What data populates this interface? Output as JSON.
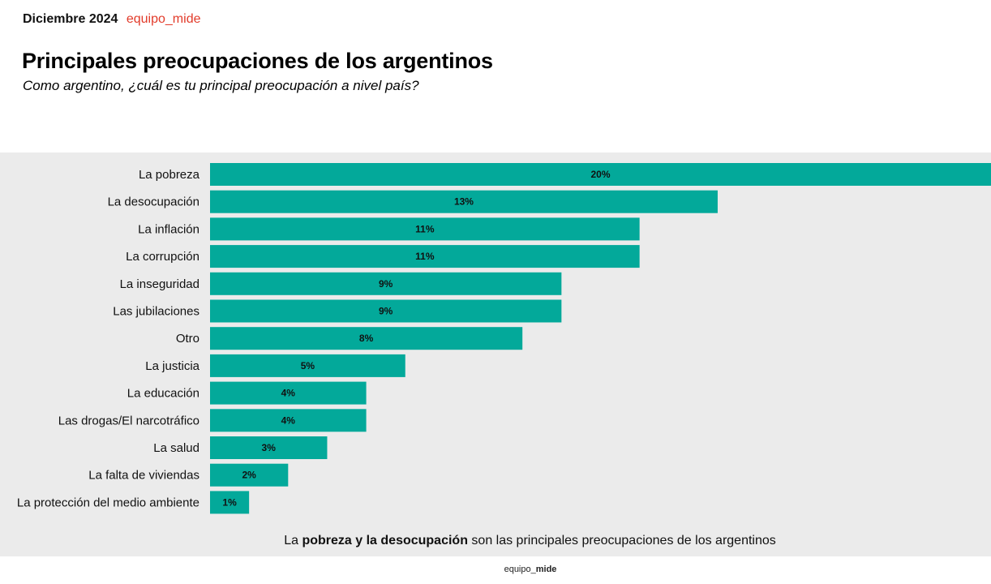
{
  "header": {
    "date": "Diciembre 2024",
    "brand": "equipo_mide"
  },
  "colors": {
    "bar": "#03a99a",
    "panel": "#ebebeb",
    "brand": "#e23b2a"
  },
  "takeaway": {
    "prefix": "La ",
    "bold": "pobreza y la desocupación",
    "suffix": " son las principales preocupaciones de los argentinos"
  },
  "footer": {
    "brand_prefix": "equipo_",
    "brand_bold": "mide"
  },
  "chart_data": {
    "type": "bar",
    "orientation": "horizontal",
    "title": "Principales preocupaciones de los argentinos",
    "subtitle": "Como argentino, ¿cuál es tu principal preocupación a nivel país?",
    "xlabel": "",
    "ylabel": "",
    "xlim": [
      0,
      20
    ],
    "unit": "%",
    "grid": false,
    "categories": [
      "La pobreza",
      "La desocupación",
      "La inflación",
      "La corrupción",
      "La inseguridad",
      "Las jubilaciones",
      "Otro",
      "La justicia",
      "La educación",
      "Las drogas/El narcotráfico",
      "La salud",
      "La falta de viviendas",
      "La protección del medio ambiente"
    ],
    "values": [
      20,
      13,
      11,
      11,
      9,
      9,
      8,
      5,
      4,
      4,
      3,
      2,
      1
    ],
    "value_labels": [
      "20%",
      "13%",
      "11%",
      "11%",
      "9%",
      "9%",
      "8%",
      "5%",
      "4%",
      "4%",
      "3%",
      "2%",
      "1%"
    ]
  }
}
